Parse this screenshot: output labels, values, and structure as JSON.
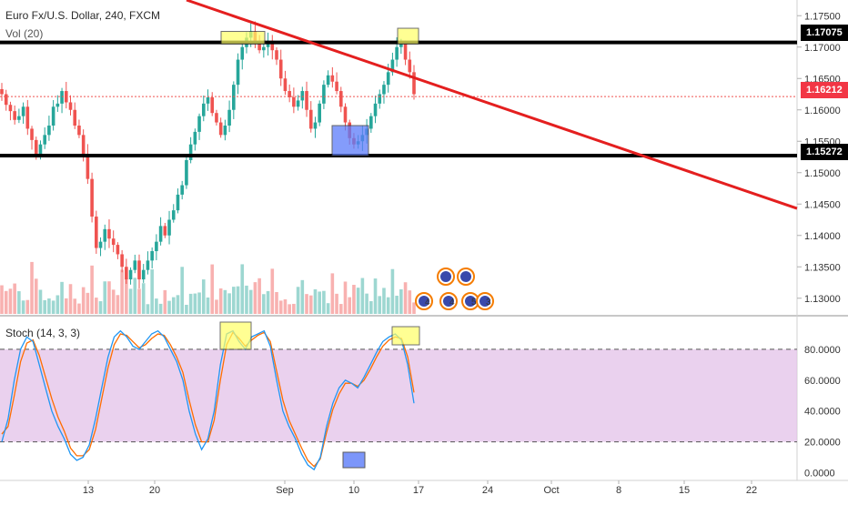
{
  "header": {
    "symbol_title": "Euro Fx/U.S. Dollar, 240, FXCM",
    "volume_label": "Vol (20)",
    "stoch_label": "Stoch (14, 3, 3)"
  },
  "price_axis": {
    "ticks": [
      "1.17500",
      "1.17000",
      "1.16500",
      "1.16000",
      "1.15500",
      "1.15000",
      "1.14500",
      "1.14000",
      "1.13500",
      "1.13000"
    ],
    "tick_values": [
      1.175,
      1.17,
      1.165,
      1.16,
      1.155,
      1.15,
      1.145,
      1.14,
      1.135,
      1.13
    ],
    "range": [
      1.1275,
      1.1775
    ]
  },
  "price_tags": [
    {
      "label": "1.17075",
      "value": 1.17075,
      "style": "black"
    },
    {
      "label": "1.16212",
      "value": 1.16212,
      "style": "red"
    },
    {
      "label": "1.15272",
      "value": 1.15272,
      "style": "black"
    }
  ],
  "stoch_axis": {
    "ticks": [
      "80.0000",
      "60.0000",
      "40.0000",
      "20.0000",
      "0.0000"
    ],
    "tick_values": [
      80,
      60,
      40,
      20,
      0
    ],
    "range": [
      -5,
      100
    ],
    "overbought": 80,
    "oversold": 20
  },
  "time_axis": {
    "labels": [
      "13",
      "20",
      "Sep",
      "10",
      "17",
      "24",
      "Oct",
      "8",
      "15",
      "22"
    ]
  },
  "event_markers": [
    "4",
    "4",
    "5",
    "3"
  ],
  "colors": {
    "up": "#26a69a",
    "down": "#ef5350",
    "trendline": "#e41f1f",
    "stoch_k": "#2196f3",
    "stoch_d": "#ff6d00",
    "stoch_band": "#e1bee7",
    "highlight_yellow": "#ffff66",
    "highlight_blue": "#5c7cfa"
  },
  "chart_data": {
    "type": "line",
    "price_levels": [
      1.17075,
      1.15272
    ],
    "last_price": 1.16212,
    "trendline": {
      "start": 1.1775,
      "end": 1.1443
    },
    "candles_close": [
      1.1625,
      1.1608,
      1.1598,
      1.1584,
      1.159,
      1.1605,
      1.157,
      1.1552,
      1.153,
      1.1545,
      1.156,
      1.1575,
      1.1605,
      1.161,
      1.163,
      1.1612,
      1.16,
      1.1575,
      1.156,
      1.153,
      1.149,
      1.143,
      1.138,
      1.139,
      1.141,
      1.1395,
      1.1385,
      1.137,
      1.135,
      1.133,
      1.1345,
      1.136,
      1.133,
      1.1345,
      1.136,
      1.1375,
      1.139,
      1.1415,
      1.14,
      1.1425,
      1.144,
      1.1465,
      1.148,
      1.152,
      1.1545,
      1.1565,
      1.159,
      1.161,
      1.162,
      1.1595,
      1.158,
      1.156,
      1.1575,
      1.16,
      1.164,
      1.168,
      1.17,
      1.1715,
      1.1725,
      1.171,
      1.1695,
      1.17,
      1.171,
      1.1695,
      1.168,
      1.165,
      1.163,
      1.162,
      1.1605,
      1.1615,
      1.163,
      1.16,
      1.157,
      1.158,
      1.161,
      1.164,
      1.1655,
      1.1645,
      1.163,
      1.1605,
      1.158,
      1.1555,
      1.1545,
      1.155,
      1.156,
      1.157,
      1.159,
      1.161,
      1.1625,
      1.164,
      1.166,
      1.168,
      1.17,
      1.1705,
      1.168,
      1.166,
      1.1625
    ],
    "stoch_k": [
      20,
      35,
      60,
      80,
      88,
      85,
      70,
      55,
      40,
      30,
      22,
      12,
      8,
      10,
      18,
      35,
      55,
      75,
      88,
      92,
      88,
      82,
      80,
      85,
      90,
      92,
      88,
      80,
      72,
      60,
      40,
      25,
      15,
      22,
      40,
      70,
      90,
      92,
      85,
      80,
      88,
      90,
      92,
      82,
      60,
      40,
      30,
      22,
      12,
      5,
      2,
      10,
      30,
      45,
      55,
      60,
      58,
      55,
      62,
      70,
      78,
      85,
      88,
      90,
      86,
      70,
      45
    ],
    "stoch_d": [
      25,
      30,
      50,
      72,
      84,
      86,
      76,
      62,
      48,
      36,
      27,
      16,
      11,
      11,
      15,
      28,
      48,
      68,
      83,
      90,
      89,
      85,
      81,
      83,
      87,
      90,
      89,
      83,
      75,
      65,
      47,
      31,
      20,
      20,
      34,
      60,
      83,
      91,
      87,
      82,
      86,
      89,
      91,
      85,
      66,
      47,
      34,
      25,
      16,
      8,
      4,
      9,
      26,
      41,
      51,
      58,
      58,
      56,
      60,
      67,
      75,
      82,
      86,
      88,
      87,
      75,
      52
    ]
  }
}
